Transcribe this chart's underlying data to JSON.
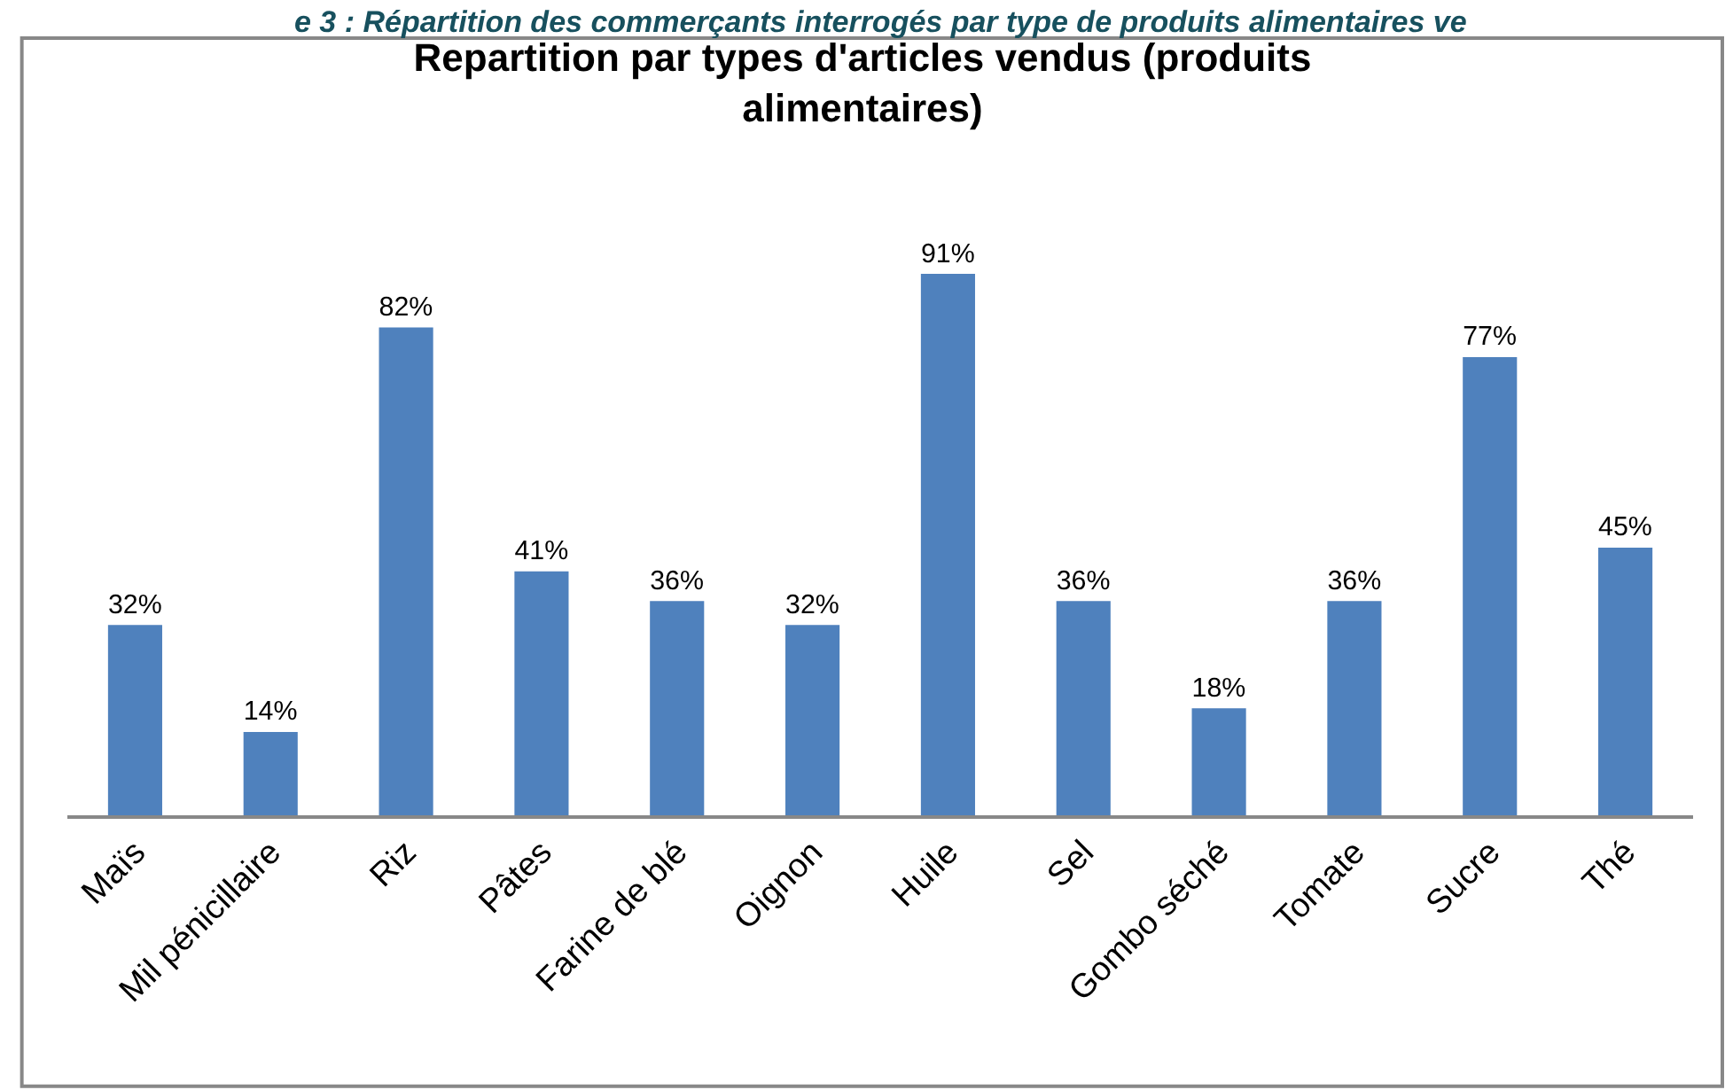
{
  "chart_data": {
    "type": "bar",
    "title": "Repartition par types d'articles vendus (produits alimentaires)",
    "annotations": [
      "e 3 : Répartition des commerçants interrogés par type de produits alimentaires ve"
    ],
    "categories": [
      "Maïs",
      "Mil pénicillaire",
      "Riz",
      "Pâtes",
      "Farine de blé",
      "Oignon",
      "Huile",
      "Sel",
      "Gombo séché",
      "Tomate",
      "Sucre",
      "Thé"
    ],
    "values": [
      32,
      14,
      82,
      41,
      36,
      32,
      91,
      36,
      18,
      36,
      77,
      45
    ],
    "value_labels": [
      "32%",
      "14%",
      "82%",
      "41%",
      "36%",
      "32%",
      "91%",
      "36%",
      "18%",
      "36%",
      "77%",
      "45%"
    ],
    "color": "#4f81bd"
  }
}
